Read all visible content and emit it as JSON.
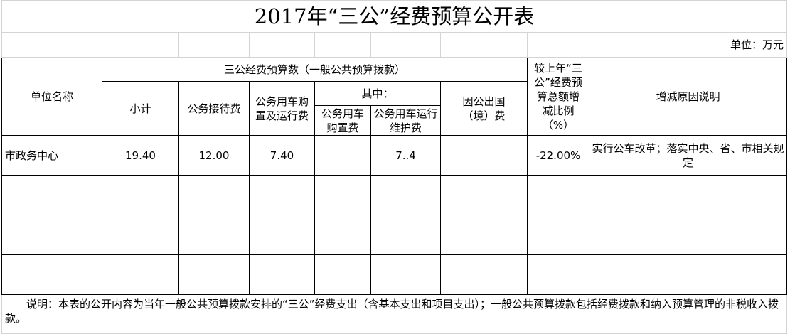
{
  "title": "2017年“三公”经费预算公开表",
  "unit": "单位：万元",
  "headers": {
    "unit_name": "单位名称",
    "budget_group": "三公经费预算数（一般公共预算拨款）",
    "subtotal": "小计",
    "reception": "公务接待费",
    "vehicle": "公务用车购置及运行费",
    "of_which": "其中：",
    "vehicle_purchase": "公务用车购置费",
    "vehicle_maintenance": "公务用车运行维护费",
    "overseas": "因公出国（境）费",
    "change_ratio": "较上年“三公”经费预算总额增减比例（%）",
    "reason": "增减原因说明"
  },
  "rows": [
    {
      "unit_name": "市政务中心",
      "subtotal": "19.40",
      "reception": "12.00",
      "vehicle": "7.40",
      "vehicle_purchase": "",
      "vehicle_maintenance": "7..4",
      "overseas": "",
      "change_ratio": "-22.00%",
      "reason": "实行公车改革；落实中央、省、市相关规定"
    }
  ],
  "note": "说明：本表的公开内容为当年一般公共预算拨款安排的“三公”经费支出（含基本支出和项目支出）；一般公共预算拨款包括经费拨款和纳入预算管理的非税收入拨款。"
}
